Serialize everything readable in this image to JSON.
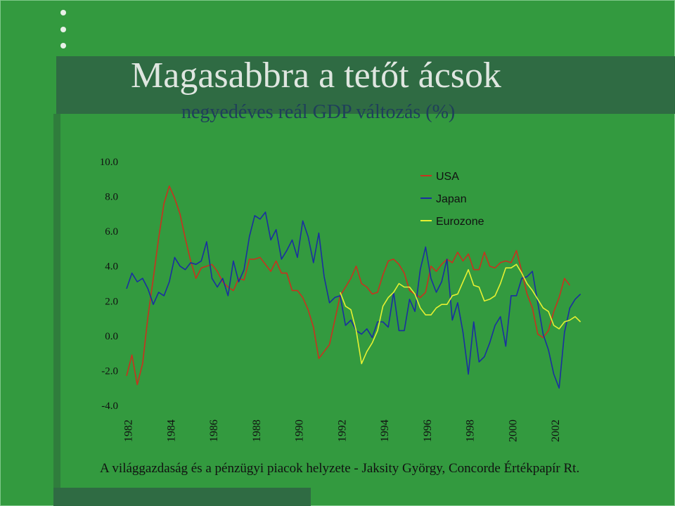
{
  "slide": {
    "title": "Magasabbra a tetőt ácsok",
    "subtitle": "negyedéves reál GDP változás (%)",
    "footer": "A világgazdaság és a pénzügyi piacok helyzete - Jaksity György, Concorde Értékpapír Rt.",
    "colors": {
      "background": "#339a3f",
      "title_band": "#2f6b43",
      "title_text": "#dfe6e0"
    }
  },
  "chart_data": {
    "type": "line",
    "title": "negyedéves reál GDP változás (%)",
    "xlabel": "",
    "ylabel": "",
    "ylim": [
      -4.0,
      10.0
    ],
    "y_ticks": [
      "10.0",
      "8.0",
      "6.0",
      "4.0",
      "2.0",
      "0.0",
      "-2.0",
      "-4.0"
    ],
    "x_ticks": [
      "1982",
      "1984",
      "1986",
      "1988",
      "1990",
      "1992",
      "1994",
      "1996",
      "1998",
      "2000",
      "2002"
    ],
    "x_range": [
      1982.0,
      2003.0
    ],
    "grid": false,
    "legend_position": "top-right",
    "series": [
      {
        "name": "USA",
        "color": "#c8321e",
        "x_start": 1982.0,
        "x_step": 0.25,
        "values": [
          -2.3,
          -1.1,
          -2.8,
          -1.6,
          1.1,
          3.3,
          5.6,
          7.6,
          8.6,
          7.9,
          7.0,
          5.6,
          4.3,
          3.3,
          3.9,
          4.0,
          4.1,
          3.7,
          3.1,
          2.8,
          2.6,
          3.3,
          3.2,
          4.4,
          4.4,
          4.5,
          4.1,
          3.7,
          4.3,
          3.6,
          3.6,
          2.6,
          2.6,
          2.2,
          1.5,
          0.5,
          -1.3,
          -0.9,
          -0.5,
          0.9,
          2.3,
          2.8,
          3.3,
          4.0,
          3.0,
          2.8,
          2.4,
          2.5,
          3.5,
          4.3,
          4.4,
          4.1,
          3.6,
          2.6,
          2.4,
          2.2,
          2.5,
          4.0,
          3.7,
          4.1,
          4.4,
          4.2,
          4.8,
          4.3,
          4.7,
          3.8,
          3.8,
          4.8,
          4.0,
          3.9,
          4.2,
          4.3,
          4.2,
          4.9,
          3.7,
          2.4,
          1.6,
          0.1,
          -0.1,
          0.3,
          1.4,
          2.2,
          3.3,
          2.9
        ]
      },
      {
        "name": "Japan",
        "color": "#1a2fa0",
        "x_start": 1982.0,
        "x_step": 0.25,
        "values": [
          2.7,
          3.6,
          3.1,
          3.3,
          2.7,
          1.8,
          2.5,
          2.3,
          3.1,
          4.5,
          4.0,
          3.8,
          4.2,
          4.1,
          4.3,
          5.4,
          3.3,
          2.8,
          3.3,
          2.3,
          4.3,
          3.1,
          3.8,
          5.7,
          6.9,
          6.7,
          7.1,
          5.5,
          6.1,
          4.4,
          4.9,
          5.5,
          4.5,
          6.6,
          5.7,
          4.2,
          5.9,
          3.4,
          1.9,
          2.2,
          2.3,
          0.6,
          0.9,
          0.3,
          0.1,
          0.4,
          -0.1,
          0.8,
          0.8,
          0.5,
          2.5,
          0.3,
          0.3,
          2.1,
          1.4,
          3.8,
          5.1,
          3.3,
          2.5,
          3.1,
          4.4,
          0.9,
          1.9,
          0.2,
          -2.2,
          0.8,
          -1.5,
          -1.2,
          -0.4,
          0.6,
          1.1,
          -0.6,
          2.3,
          2.3,
          3.3,
          3.4,
          3.7,
          1.9,
          0.1,
          -0.8,
          -2.2,
          -3.0,
          0.2,
          1.6,
          2.1,
          2.4
        ]
      },
      {
        "name": "Eurozone",
        "color": "#e6f032",
        "x_start": 1992.0,
        "x_step": 0.25,
        "values": [
          2.5,
          1.7,
          1.5,
          0.3,
          -1.6,
          -0.9,
          -0.4,
          0.3,
          1.7,
          2.2,
          2.5,
          3.0,
          2.8,
          2.8,
          2.4,
          1.6,
          1.2,
          1.2,
          1.6,
          1.8,
          1.8,
          2.3,
          2.4,
          3.1,
          3.8,
          2.9,
          2.8,
          2.0,
          2.1,
          2.3,
          3.0,
          3.9,
          3.9,
          4.1,
          3.6,
          3.0,
          2.6,
          2.1,
          1.6,
          1.4,
          0.6,
          0.4,
          0.8,
          0.9,
          1.1,
          0.8
        ]
      }
    ]
  }
}
